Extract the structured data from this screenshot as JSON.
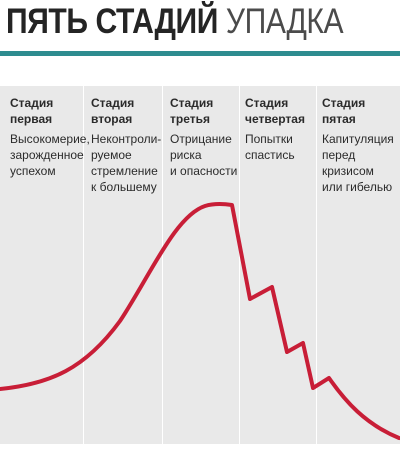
{
  "title": {
    "part1": "ПЯТЬ СТАДИЙ",
    "part2": "УПАДКА"
  },
  "colors": {
    "accent_rule": "#2e8c8f",
    "curve": "#c81e37",
    "panel": "#e9e9e9"
  },
  "stages": [
    {
      "heading": "Стадия\nпервая",
      "description": "Высокомерие,\nзарожденное\nуспехом"
    },
    {
      "heading": "Стадия\nвторая",
      "description": "Неконтроли-\nруемое\nстремление\nк большему"
    },
    {
      "heading": "Стадия\nтретья",
      "description": "Отрицание\nриска\nи опасности"
    },
    {
      "heading": "Стадия\nчетвертая",
      "description": "Попытки\nспастись"
    },
    {
      "heading": "Стадия\nпятая",
      "description": "Капитуляция\nперед\nкризисом\nили гибелью"
    }
  ]
}
